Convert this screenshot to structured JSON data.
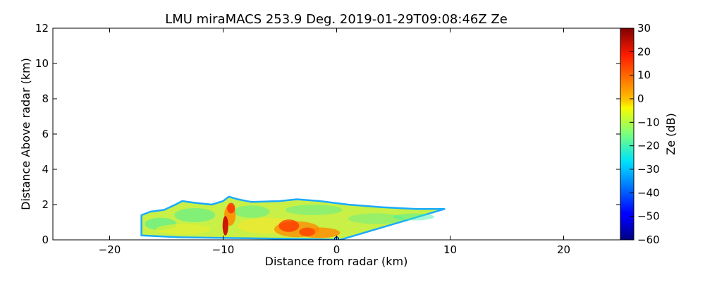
{
  "chart_data": {
    "type": "heatmap",
    "title": "LMU miraMACS 253.9 Deg. 2019-01-29T09:08:46Z  Ze",
    "xlabel": "Distance from radar (km)",
    "ylabel": "Distance Above radar  (km)",
    "xlim": [
      -25,
      25
    ],
    "ylim": [
      0,
      12
    ],
    "xticks": [
      -20,
      -10,
      0,
      10,
      20
    ],
    "xtick_labels": [
      "−20",
      "−10",
      "0",
      "10",
      "20"
    ],
    "yticks": [
      0,
      2,
      4,
      6,
      8,
      10,
      12
    ],
    "ytick_labels": [
      "0",
      "2",
      "4",
      "6",
      "8",
      "10",
      "12"
    ],
    "colorbar": {
      "label": "Ze (dB)",
      "range": [
        -60,
        30
      ],
      "ticks": [
        30,
        20,
        10,
        0,
        -10,
        -20,
        -30,
        -40,
        -50,
        -60
      ],
      "tick_labels": [
        "30",
        "20",
        "10",
        "0",
        "−10",
        "−20",
        "−30",
        "−40",
        "−50",
        "−60"
      ],
      "colormap": "jet"
    },
    "echo_region": {
      "outline_km": [
        [
          -17.2,
          0.25
        ],
        [
          -17.2,
          1.4
        ],
        [
          -16.4,
          1.6
        ],
        [
          -15.2,
          1.7
        ],
        [
          -14.2,
          2.0
        ],
        [
          -13.6,
          2.2
        ],
        [
          -12.5,
          2.1
        ],
        [
          -11.0,
          2.0
        ],
        [
          -10.0,
          2.2
        ],
        [
          -9.5,
          2.45
        ],
        [
          -8.7,
          2.3
        ],
        [
          -7.5,
          2.15
        ],
        [
          -5.0,
          2.2
        ],
        [
          -3.5,
          2.3
        ],
        [
          -1.5,
          2.2
        ],
        [
          1.0,
          2.0
        ],
        [
          4.0,
          1.85
        ],
        [
          7.0,
          1.75
        ],
        [
          8.5,
          1.75
        ],
        [
          9.5,
          1.75
        ],
        [
          0.3,
          0.0
        ],
        [
          -3.0,
          0.05
        ],
        [
          -9.0,
          0.1
        ],
        [
          -14.0,
          0.15
        ],
        [
          -17.2,
          0.25
        ]
      ],
      "colors": {
        "fill": "#c8f046",
        "edge": "#1aaaff",
        "inner": "#3cf0a8",
        "core": "#ff8800",
        "strong": "#ff2a00",
        "peak": "#cc0000"
      }
    },
    "radar_marker_km": [
      0,
      0.05
    ]
  }
}
